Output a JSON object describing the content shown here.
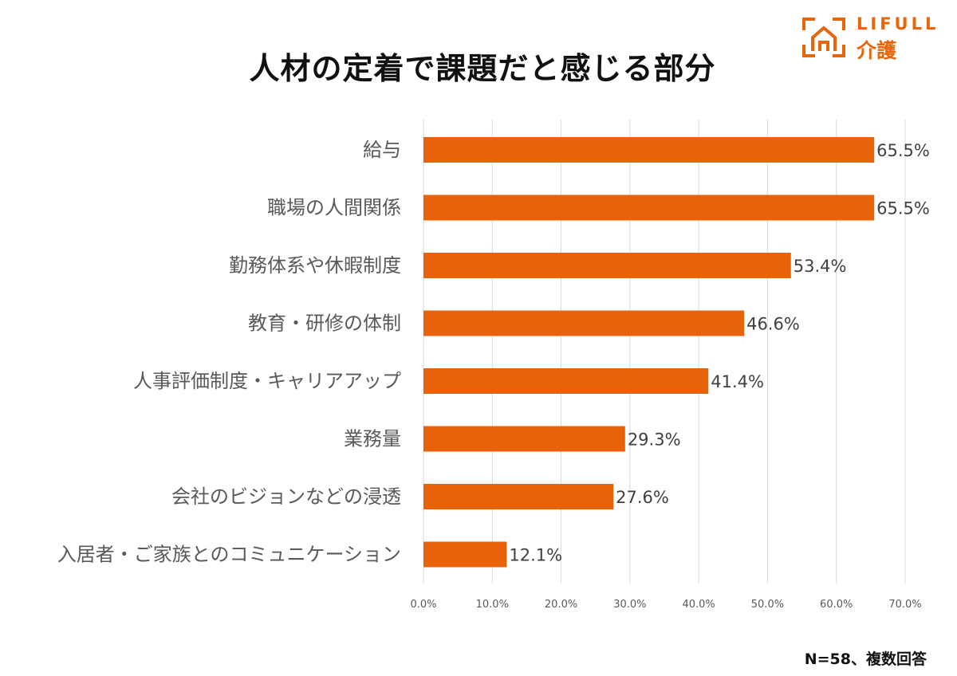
{
  "brand": {
    "name": "LIFULL",
    "sub": "介護",
    "color": "#e8650a",
    "icon": "house-bracket-logo-icon"
  },
  "footnote": "N=58、複数回答",
  "chart_data": {
    "type": "bar",
    "orientation": "horizontal",
    "title": "人材の定着で課題だと感じる部分",
    "xlabel": "",
    "ylabel": "",
    "categories": [
      "給与",
      "職場の人間関係",
      "勤務体系や休暇制度",
      "教育・研修の体制",
      "人事評価制度・キャリアアップ",
      "業務量",
      "会社のビジョンなどの浸透",
      "入居者・ご家族とのコミュニケーション"
    ],
    "values": [
      65.5,
      65.5,
      53.4,
      46.6,
      41.4,
      29.3,
      27.6,
      12.1
    ],
    "value_labels": [
      "65.5%",
      "65.5%",
      "53.4%",
      "46.6%",
      "41.4%",
      "29.3%",
      "27.6%",
      "12.1%"
    ],
    "xlim": [
      0,
      70
    ],
    "xticks": [
      0,
      10,
      20,
      30,
      40,
      50,
      60,
      70
    ],
    "xtick_labels": [
      "0.0%",
      "10.0%",
      "20.0%",
      "30.0%",
      "40.0%",
      "50.0%",
      "60.0%",
      "70.0%"
    ],
    "grid": true,
    "legend": "none",
    "bar_color": "#e8620a"
  }
}
